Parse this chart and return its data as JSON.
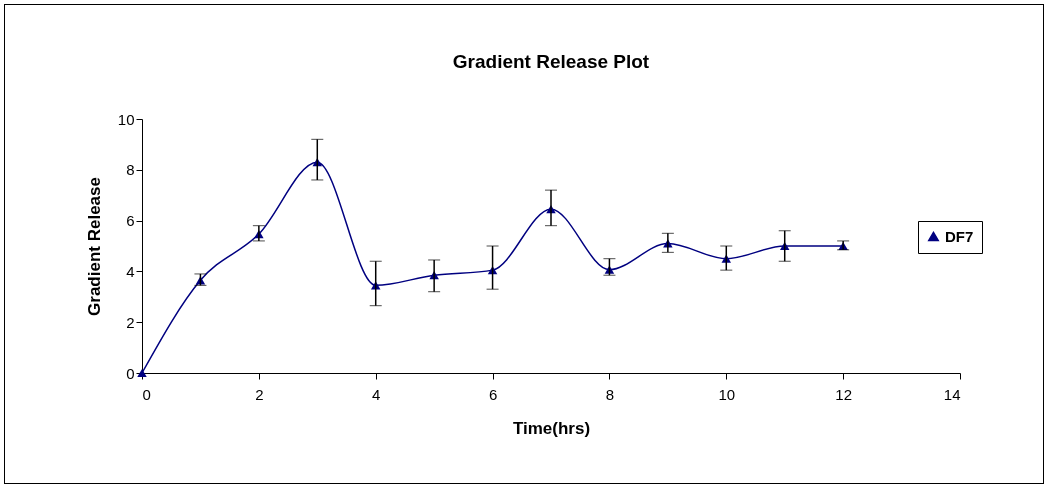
{
  "chart_data": {
    "type": "line",
    "title": "Gradient Release Plot",
    "xlabel": "Time(hrs)",
    "ylabel": "Gradient Release",
    "x": [
      0,
      1,
      2,
      3,
      4,
      5,
      6,
      7,
      8,
      9,
      10,
      11,
      12
    ],
    "series": [
      {
        "name": "DF7",
        "color": "#000080",
        "values": [
          0,
          3.65,
          5.47,
          8.3,
          3.45,
          3.85,
          4.05,
          6.45,
          4.07,
          5.1,
          4.5,
          5.0,
          5.0
        ],
        "errors": [
          null,
          [
            3.45,
            3.9
          ],
          [
            5.2,
            5.8
          ],
          [
            7.6,
            9.2
          ],
          [
            2.65,
            4.4
          ],
          [
            3.2,
            4.45
          ],
          [
            3.3,
            5.0
          ],
          [
            5.8,
            7.2
          ],
          [
            3.85,
            4.5
          ],
          [
            4.75,
            5.5
          ],
          [
            4.05,
            5.0
          ],
          [
            4.4,
            5.6
          ],
          [
            4.85,
            5.2
          ]
        ]
      }
    ],
    "xlim": [
      0,
      14
    ],
    "xticks": [
      0,
      2,
      4,
      6,
      8,
      10,
      12,
      14
    ],
    "ylim": [
      0,
      10
    ],
    "yticks": [
      0,
      2,
      4,
      6,
      8,
      10
    ],
    "grid": false,
    "legend": "right",
    "marker": "triangle",
    "line_style": "solid"
  }
}
